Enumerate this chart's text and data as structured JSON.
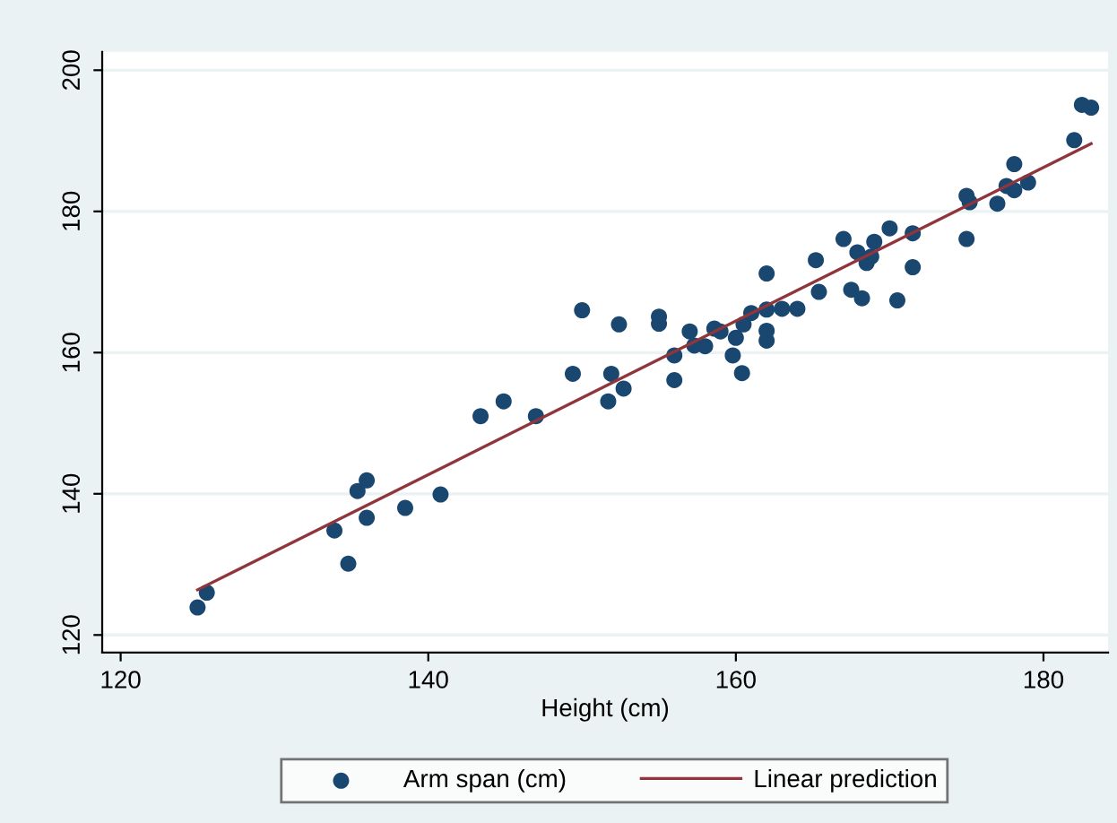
{
  "chart_data": {
    "type": "scatter",
    "xlabel": "Height (cm)",
    "xlim": [
      118.8,
      184.2
    ],
    "ylim": [
      117.5,
      202.6
    ],
    "xticks": [
      120,
      140,
      160,
      180
    ],
    "yticks": [
      120,
      140,
      160,
      180,
      200
    ],
    "grid": "y",
    "legend": "bottom",
    "series": [
      {
        "name": "Arm span (cm)",
        "color": "#1a476f",
        "marker": "circle",
        "x": [
          125,
          125.6,
          133.9,
          134.8,
          135.4,
          136.0,
          136.0,
          138.5,
          140.8,
          143.4,
          144.9,
          147.0,
          149.4,
          150.0,
          151.7,
          151.9,
          152.4,
          152.7,
          155.0,
          155.0,
          156.0,
          156.0,
          157.0,
          157.3,
          158.0,
          158.6,
          159.0,
          159.8,
          160.0,
          160.4,
          160.5,
          161.0,
          162.0,
          162.0,
          162.0,
          162.0,
          163.0,
          164.0,
          165.2,
          165.4,
          167.0,
          167.5,
          167.9,
          168.2,
          168.5,
          168.8,
          169.0,
          170.0,
          170.5,
          171.5,
          171.5,
          175.0,
          175.2,
          175.0,
          177.0,
          177.6,
          178.1,
          178.1,
          179.0,
          182.0,
          182.5,
          183.1
        ],
        "values": [
          123.9,
          126,
          134.8,
          130.1,
          140.4,
          141.9,
          136.6,
          138.0,
          139.9,
          151.0,
          153.1,
          151.0,
          157.0,
          166.0,
          153.1,
          157.0,
          164.0,
          154.9,
          165.1,
          164.1,
          159.6,
          156.1,
          163.0,
          161.0,
          160.9,
          163.4,
          163.0,
          159.6,
          162.1,
          157.1,
          164.0,
          165.6,
          171.2,
          166.1,
          163.1,
          161.7,
          166.2,
          166.2,
          173.1,
          168.6,
          176.1,
          168.9,
          174.2,
          167.7,
          172.7,
          173.6,
          175.7,
          177.6,
          167.4,
          176.9,
          172.1,
          182.2,
          181.3,
          176.1,
          181.1,
          183.6,
          186.7,
          183.0,
          184.1,
          190.1,
          195.1,
          194.7
        ]
      },
      {
        "name": "Linear prediction",
        "color": "#90353b",
        "type": "line",
        "line_style": "solid",
        "x": [
          125,
          183.1
        ],
        "values": [
          126.4,
          189.6
        ]
      }
    ]
  }
}
